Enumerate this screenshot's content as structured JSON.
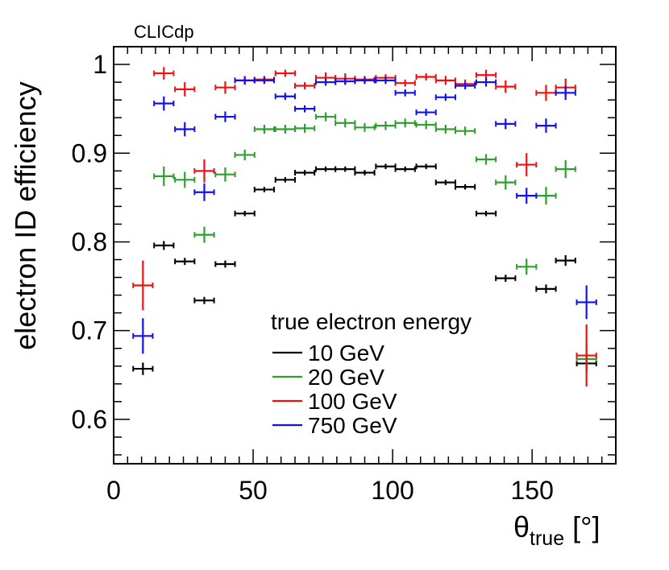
{
  "chart_data": {
    "type": "scatter",
    "title": "CLICdp",
    "xlabel": "θ",
    "xlabel_sub": "true",
    "xlabel_unit": "[°]",
    "ylabel": "electron ID efficiency",
    "xlim": [
      0,
      180
    ],
    "ylim": [
      0.55,
      1.02
    ],
    "x_ticks": [
      0,
      50,
      100,
      150
    ],
    "x_tick_labels": [
      "0",
      "50",
      "100",
      "150"
    ],
    "y_ticks": [
      0.6,
      0.7,
      0.8,
      0.9,
      1.0
    ],
    "y_tick_labels": [
      "0.6",
      "0.7",
      "0.8",
      "0.9",
      "1"
    ],
    "grid": false,
    "legend_title": "true electron energy",
    "legend_position": "bottom-center",
    "colors": {
      "10 GeV": "#000000",
      "20 GeV": "#2e9e2e",
      "100 GeV": "#ee1111",
      "750 GeV": "#1111ee"
    },
    "series": [
      {
        "name": "10 GeV",
        "color": "#000000",
        "points": [
          {
            "x": 10.5,
            "y": 0.657,
            "xerr": 3.5,
            "yerr": 0.007
          },
          {
            "x": 18,
            "y": 0.796,
            "xerr": 3.5,
            "yerr": 0.005
          },
          {
            "x": 25.5,
            "y": 0.778,
            "xerr": 3.5,
            "yerr": 0.004
          },
          {
            "x": 32.5,
            "y": 0.734,
            "xerr": 3.5,
            "yerr": 0.004
          },
          {
            "x": 40,
            "y": 0.775,
            "xerr": 3.5,
            "yerr": 0.004
          },
          {
            "x": 47,
            "y": 0.832,
            "xerr": 3.5,
            "yerr": 0.003
          },
          {
            "x": 54,
            "y": 0.859,
            "xerr": 3.5,
            "yerr": 0.003
          },
          {
            "x": 61.5,
            "y": 0.87,
            "xerr": 3.5,
            "yerr": 0.003
          },
          {
            "x": 68.5,
            "y": 0.878,
            "xerr": 3.5,
            "yerr": 0.003
          },
          {
            "x": 76,
            "y": 0.882,
            "xerr": 3.5,
            "yerr": 0.003
          },
          {
            "x": 83,
            "y": 0.882,
            "xerr": 3.5,
            "yerr": 0.003
          },
          {
            "x": 90,
            "y": 0.878,
            "xerr": 3.5,
            "yerr": 0.003
          },
          {
            "x": 97.5,
            "y": 0.885,
            "xerr": 3.5,
            "yerr": 0.003
          },
          {
            "x": 104.5,
            "y": 0.882,
            "xerr": 3.5,
            "yerr": 0.003
          },
          {
            "x": 112,
            "y": 0.885,
            "xerr": 3.5,
            "yerr": 0.003
          },
          {
            "x": 119,
            "y": 0.867,
            "xerr": 3.5,
            "yerr": 0.003
          },
          {
            "x": 126,
            "y": 0.862,
            "xerr": 3.5,
            "yerr": 0.003
          },
          {
            "x": 133.5,
            "y": 0.832,
            "xerr": 3.5,
            "yerr": 0.003
          },
          {
            "x": 140.5,
            "y": 0.759,
            "xerr": 3.5,
            "yerr": 0.004
          },
          {
            "x": 155,
            "y": 0.747,
            "xerr": 3.5,
            "yerr": 0.005
          },
          {
            "x": 162,
            "y": 0.779,
            "xerr": 3.5,
            "yerr": 0.006
          },
          {
            "x": 169.5,
            "y": 0.663,
            "xerr": 3.5,
            "yerr": 0.008
          }
        ]
      },
      {
        "name": "20 GeV",
        "color": "#2e9e2e",
        "points": [
          {
            "x": 18,
            "y": 0.874,
            "xerr": 3.5,
            "yerr": 0.011
          },
          {
            "x": 25.5,
            "y": 0.87,
            "xerr": 3.5,
            "yerr": 0.009
          },
          {
            "x": 32.5,
            "y": 0.808,
            "xerr": 3.5,
            "yerr": 0.009
          },
          {
            "x": 40,
            "y": 0.876,
            "xerr": 3.5,
            "yerr": 0.008
          },
          {
            "x": 47,
            "y": 0.898,
            "xerr": 3.5,
            "yerr": 0.006
          },
          {
            "x": 54,
            "y": 0.927,
            "xerr": 3.5,
            "yerr": 0.005
          },
          {
            "x": 61.5,
            "y": 0.927,
            "xerr": 3.5,
            "yerr": 0.005
          },
          {
            "x": 68.5,
            "y": 0.928,
            "xerr": 3.5,
            "yerr": 0.005
          },
          {
            "x": 76,
            "y": 0.941,
            "xerr": 3.5,
            "yerr": 0.005
          },
          {
            "x": 83,
            "y": 0.934,
            "xerr": 3.5,
            "yerr": 0.005
          },
          {
            "x": 90,
            "y": 0.929,
            "xerr": 3.5,
            "yerr": 0.005
          },
          {
            "x": 97.5,
            "y": 0.931,
            "xerr": 3.5,
            "yerr": 0.005
          },
          {
            "x": 104.5,
            "y": 0.934,
            "xerr": 3.5,
            "yerr": 0.005
          },
          {
            "x": 112,
            "y": 0.932,
            "xerr": 3.5,
            "yerr": 0.005
          },
          {
            "x": 119,
            "y": 0.927,
            "xerr": 3.5,
            "yerr": 0.005
          },
          {
            "x": 126,
            "y": 0.925,
            "xerr": 3.5,
            "yerr": 0.005
          },
          {
            "x": 133.5,
            "y": 0.893,
            "xerr": 3.5,
            "yerr": 0.006
          },
          {
            "x": 140.5,
            "y": 0.867,
            "xerr": 3.5,
            "yerr": 0.008
          },
          {
            "x": 148,
            "y": 0.772,
            "xerr": 3.5,
            "yerr": 0.009
          },
          {
            "x": 155,
            "y": 0.852,
            "xerr": 3.5,
            "yerr": 0.01
          },
          {
            "x": 162,
            "y": 0.882,
            "xerr": 3.5,
            "yerr": 0.01
          },
          {
            "x": 169.5,
            "y": 0.668,
            "xerr": 3.5,
            "yerr": 0.015
          }
        ]
      },
      {
        "name": "100 GeV",
        "color": "#ee1111",
        "points": [
          {
            "x": 10.5,
            "y": 0.751,
            "xerr": 3.5,
            "yerr": 0.028
          },
          {
            "x": 18,
            "y": 0.99,
            "xerr": 3.5,
            "yerr": 0.007
          },
          {
            "x": 25.5,
            "y": 0.972,
            "xerr": 3.5,
            "yerr": 0.008
          },
          {
            "x": 32.5,
            "y": 0.88,
            "xerr": 3.5,
            "yerr": 0.013
          },
          {
            "x": 40,
            "y": 0.974,
            "xerr": 3.5,
            "yerr": 0.007
          },
          {
            "x": 47,
            "y": 0.982,
            "xerr": 3.5,
            "yerr": 0.005
          },
          {
            "x": 54,
            "y": 0.983,
            "xerr": 3.5,
            "yerr": 0.004
          },
          {
            "x": 61.5,
            "y": 0.99,
            "xerr": 3.5,
            "yerr": 0.004
          },
          {
            "x": 68.5,
            "y": 0.976,
            "xerr": 3.5,
            "yerr": 0.004
          },
          {
            "x": 76,
            "y": 0.985,
            "xerr": 3.5,
            "yerr": 0.006
          },
          {
            "x": 83,
            "y": 0.984,
            "xerr": 3.5,
            "yerr": 0.006
          },
          {
            "x": 90,
            "y": 0.983,
            "xerr": 3.5,
            "yerr": 0.004
          },
          {
            "x": 97.5,
            "y": 0.985,
            "xerr": 3.5,
            "yerr": 0.004
          },
          {
            "x": 104.5,
            "y": 0.979,
            "xerr": 3.5,
            "yerr": 0.004
          },
          {
            "x": 112,
            "y": 0.986,
            "xerr": 3.5,
            "yerr": 0.004
          },
          {
            "x": 119,
            "y": 0.982,
            "xerr": 3.5,
            "yerr": 0.005
          },
          {
            "x": 126,
            "y": 0.978,
            "xerr": 3.5,
            "yerr": 0.005
          },
          {
            "x": 133.5,
            "y": 0.988,
            "xerr": 3.5,
            "yerr": 0.006
          },
          {
            "x": 140.5,
            "y": 0.975,
            "xerr": 3.5,
            "yerr": 0.007
          },
          {
            "x": 148,
            "y": 0.887,
            "xerr": 3.5,
            "yerr": 0.013
          },
          {
            "x": 155,
            "y": 0.968,
            "xerr": 3.5,
            "yerr": 0.009
          },
          {
            "x": 162,
            "y": 0.974,
            "xerr": 3.5,
            "yerr": 0.01
          },
          {
            "x": 169.5,
            "y": 0.672,
            "xerr": 3.5,
            "yerr": 0.035
          }
        ]
      },
      {
        "name": "750 GeV",
        "color": "#1111ee",
        "points": [
          {
            "x": 10.5,
            "y": 0.694,
            "xerr": 3.5,
            "yerr": 0.02
          },
          {
            "x": 18,
            "y": 0.956,
            "xerr": 3.5,
            "yerr": 0.008
          },
          {
            "x": 25.5,
            "y": 0.927,
            "xerr": 3.5,
            "yerr": 0.008
          },
          {
            "x": 32.5,
            "y": 0.856,
            "xerr": 3.5,
            "yerr": 0.01
          },
          {
            "x": 40,
            "y": 0.941,
            "xerr": 3.5,
            "yerr": 0.006
          },
          {
            "x": 47,
            "y": 0.982,
            "xerr": 3.5,
            "yerr": 0.004
          },
          {
            "x": 54,
            "y": 0.982,
            "xerr": 3.5,
            "yerr": 0.004
          },
          {
            "x": 61.5,
            "y": 0.964,
            "xerr": 3.5,
            "yerr": 0.004
          },
          {
            "x": 68.5,
            "y": 0.95,
            "xerr": 3.5,
            "yerr": 0.004
          },
          {
            "x": 76,
            "y": 0.98,
            "xerr": 3.5,
            "yerr": 0.004
          },
          {
            "x": 83,
            "y": 0.981,
            "xerr": 3.5,
            "yerr": 0.004
          },
          {
            "x": 90,
            "y": 0.982,
            "xerr": 3.5,
            "yerr": 0.004
          },
          {
            "x": 97.5,
            "y": 0.982,
            "xerr": 3.5,
            "yerr": 0.004
          },
          {
            "x": 104.5,
            "y": 0.968,
            "xerr": 3.5,
            "yerr": 0.004
          },
          {
            "x": 112,
            "y": 0.946,
            "xerr": 3.5,
            "yerr": 0.004
          },
          {
            "x": 119,
            "y": 0.963,
            "xerr": 3.5,
            "yerr": 0.004
          },
          {
            "x": 126,
            "y": 0.976,
            "xerr": 3.5,
            "yerr": 0.004
          },
          {
            "x": 133.5,
            "y": 0.98,
            "xerr": 3.5,
            "yerr": 0.005
          },
          {
            "x": 140.5,
            "y": 0.933,
            "xerr": 3.5,
            "yerr": 0.006
          },
          {
            "x": 148,
            "y": 0.852,
            "xerr": 3.5,
            "yerr": 0.009
          },
          {
            "x": 155,
            "y": 0.931,
            "xerr": 3.5,
            "yerr": 0.008
          },
          {
            "x": 162,
            "y": 0.968,
            "xerr": 3.5,
            "yerr": 0.008
          },
          {
            "x": 169.5,
            "y": 0.732,
            "xerr": 3.5,
            "yerr": 0.019
          }
        ]
      }
    ]
  }
}
